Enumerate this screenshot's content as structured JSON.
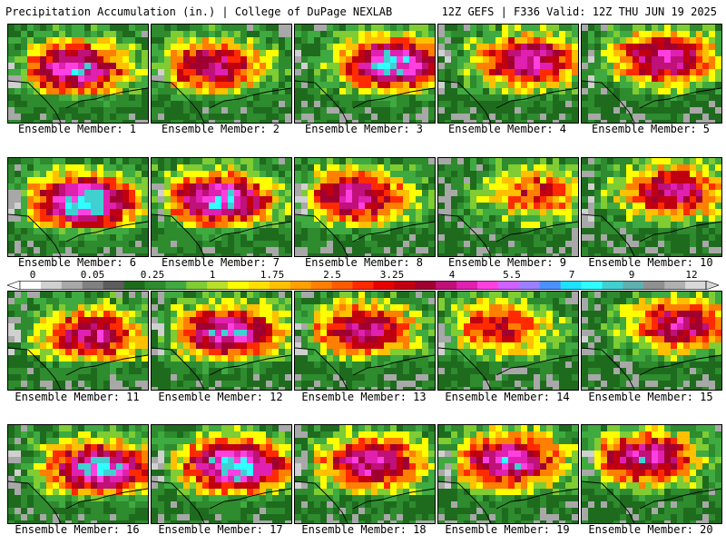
{
  "header": {
    "left_title": "Precipitation Accumulation (in.) | College of DuPage NEXLAB",
    "right_title": "12Z GEFS | F336 Valid: 12Z THU JUN 19 2025"
  },
  "legend": {
    "labels": [
      "0",
      "0.05",
      "0.25",
      "1",
      "1.75",
      "2.5",
      "3.25",
      "4",
      "5.5",
      "7",
      "9",
      "12"
    ],
    "colors": [
      "#ffffff",
      "#d0d0d0",
      "#a8a8a8",
      "#808080",
      "#5c5c5c",
      "#1e6b1e",
      "#2e8b2e",
      "#3faa3f",
      "#7fcc33",
      "#b8e02a",
      "#ffff00",
      "#ffe000",
      "#ffc000",
      "#ffa000",
      "#ff7f00",
      "#ff5a00",
      "#ff2a00",
      "#e60000",
      "#c00010",
      "#a00030",
      "#c0107a",
      "#e020b0",
      "#ff40e0",
      "#d060ff",
      "#9a80ff",
      "#4a90ff",
      "#20e0ff",
      "#30ffff",
      "#40d0d0",
      "#60b0b0",
      "#909090",
      "#b0b0b0",
      "#d8d8d8"
    ]
  },
  "panels": [
    {
      "caption": "Ensemble Member: 1",
      "intensity": 0.65
    },
    {
      "caption": "Ensemble Member: 2",
      "intensity": 0.55
    },
    {
      "caption": "Ensemble Member: 3",
      "intensity": 0.7
    },
    {
      "caption": "Ensemble Member: 4",
      "intensity": 0.6
    },
    {
      "caption": "Ensemble Member: 5",
      "intensity": 0.6
    },
    {
      "caption": "Ensemble Member: 6",
      "intensity": 0.75
    },
    {
      "caption": "Ensemble Member: 7",
      "intensity": 0.7
    },
    {
      "caption": "Ensemble Member: 8",
      "intensity": 0.6
    },
    {
      "caption": "Ensemble Member: 9",
      "intensity": 0.4
    },
    {
      "caption": "Ensemble Member: 10",
      "intensity": 0.55
    },
    {
      "caption": "Ensemble Member: 11",
      "intensity": 0.55
    },
    {
      "caption": "Ensemble Member: 12",
      "intensity": 0.65
    },
    {
      "caption": "Ensemble Member: 13",
      "intensity": 0.55
    },
    {
      "caption": "Ensemble Member: 14",
      "intensity": 0.45
    },
    {
      "caption": "Ensemble Member: 15",
      "intensity": 0.55
    },
    {
      "caption": "Ensemble Member: 16",
      "intensity": 0.7
    },
    {
      "caption": "Ensemble Member: 17",
      "intensity": 0.75
    },
    {
      "caption": "Ensemble Member: 18",
      "intensity": 0.6
    },
    {
      "caption": "Ensemble Member: 19",
      "intensity": 0.65
    },
    {
      "caption": "Ensemble Member: 20",
      "intensity": 0.6
    }
  ]
}
